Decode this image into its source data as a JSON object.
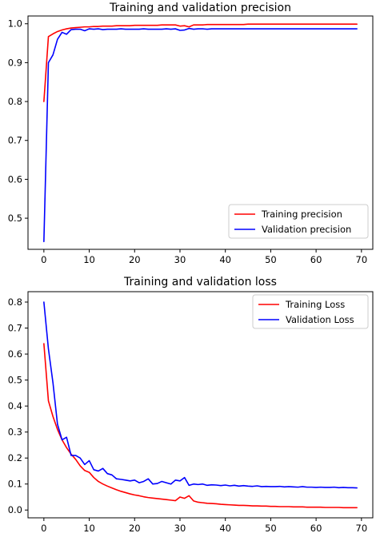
{
  "chart_data": [
    {
      "type": "line",
      "title": "Training and validation precision",
      "xlabel": "",
      "ylabel": "",
      "xlim": [
        -3.5,
        72.5
      ],
      "ylim": [
        0.42,
        1.02
      ],
      "xticks": [
        0,
        10,
        20,
        30,
        40,
        50,
        60,
        70
      ],
      "yticks": [
        0.5,
        0.6,
        0.7,
        0.8,
        0.9,
        1.0
      ],
      "xtick_labels": [
        "0",
        "10",
        "20",
        "30",
        "40",
        "50",
        "60",
        "70"
      ],
      "ytick_labels": [
        "0.5",
        "0.6",
        "0.7",
        "0.8",
        "0.9",
        "1.0"
      ],
      "grid": false,
      "legend_position": "lower-right",
      "series": [
        {
          "name": "Training precision",
          "color": "#ff0000",
          "x": [
            0,
            1,
            2,
            3,
            4,
            5,
            6,
            7,
            8,
            9,
            10,
            11,
            12,
            13,
            14,
            15,
            16,
            17,
            18,
            19,
            20,
            21,
            22,
            23,
            24,
            25,
            26,
            27,
            28,
            29,
            30,
            31,
            32,
            33,
            34,
            35,
            36,
            37,
            38,
            39,
            40,
            41,
            42,
            43,
            44,
            45,
            46,
            47,
            48,
            49,
            50,
            51,
            52,
            53,
            54,
            55,
            56,
            57,
            58,
            59,
            60,
            61,
            62,
            63,
            64,
            65,
            66,
            67,
            68,
            69
          ],
          "values": [
            0.8,
            0.967,
            0.974,
            0.98,
            0.984,
            0.987,
            0.989,
            0.99,
            0.991,
            0.992,
            0.992,
            0.993,
            0.993,
            0.994,
            0.994,
            0.994,
            0.995,
            0.995,
            0.995,
            0.995,
            0.996,
            0.996,
            0.996,
            0.996,
            0.996,
            0.996,
            0.997,
            0.997,
            0.997,
            0.997,
            0.994,
            0.995,
            0.992,
            0.997,
            0.997,
            0.997,
            0.998,
            0.998,
            0.998,
            0.998,
            0.998,
            0.998,
            0.998,
            0.998,
            0.998,
            0.999,
            0.999,
            0.999,
            0.999,
            0.999,
            0.999,
            0.999,
            0.999,
            0.999,
            0.999,
            0.999,
            0.999,
            0.999,
            0.999,
            0.999,
            0.999,
            0.999,
            0.999,
            0.999,
            0.999,
            0.999,
            0.999,
            0.999,
            0.999,
            0.999
          ]
        },
        {
          "name": "Validation precision",
          "color": "#0000ff",
          "x": [
            0,
            1,
            2,
            3,
            4,
            5,
            6,
            7,
            8,
            9,
            10,
            11,
            12,
            13,
            14,
            15,
            16,
            17,
            18,
            19,
            20,
            21,
            22,
            23,
            24,
            25,
            26,
            27,
            28,
            29,
            30,
            31,
            32,
            33,
            34,
            35,
            36,
            37,
            38,
            39,
            40,
            41,
            42,
            43,
            44,
            45,
            46,
            47,
            48,
            49,
            50,
            51,
            52,
            53,
            54,
            55,
            56,
            57,
            58,
            59,
            60,
            61,
            62,
            63,
            64,
            65,
            66,
            67,
            68,
            69
          ],
          "values": [
            0.44,
            0.9,
            0.92,
            0.96,
            0.978,
            0.973,
            0.985,
            0.986,
            0.986,
            0.982,
            0.987,
            0.986,
            0.987,
            0.985,
            0.986,
            0.986,
            0.986,
            0.987,
            0.986,
            0.986,
            0.986,
            0.986,
            0.987,
            0.986,
            0.986,
            0.986,
            0.986,
            0.987,
            0.986,
            0.987,
            0.983,
            0.984,
            0.988,
            0.986,
            0.987,
            0.987,
            0.986,
            0.987,
            0.987,
            0.987,
            0.987,
            0.987,
            0.987,
            0.987,
            0.987,
            0.987,
            0.987,
            0.987,
            0.987,
            0.987,
            0.987,
            0.987,
            0.987,
            0.987,
            0.987,
            0.987,
            0.987,
            0.987,
            0.987,
            0.987,
            0.987,
            0.987,
            0.987,
            0.987,
            0.987,
            0.987,
            0.987,
            0.987,
            0.987,
            0.987
          ]
        }
      ]
    },
    {
      "type": "line",
      "title": "Training and validation loss",
      "xlabel": "",
      "ylabel": "",
      "xlim": [
        -3.5,
        72.5
      ],
      "ylim": [
        -0.03,
        0.84
      ],
      "xticks": [
        0,
        10,
        20,
        30,
        40,
        50,
        60,
        70
      ],
      "yticks": [
        0.0,
        0.1,
        0.2,
        0.3,
        0.4,
        0.5,
        0.6,
        0.7,
        0.8
      ],
      "xtick_labels": [
        "0",
        "10",
        "20",
        "30",
        "40",
        "50",
        "60",
        "70"
      ],
      "ytick_labels": [
        "0.0",
        "0.1",
        "0.2",
        "0.3",
        "0.4",
        "0.5",
        "0.6",
        "0.7",
        "0.8"
      ],
      "grid": false,
      "legend_position": "upper-right",
      "series": [
        {
          "name": "Training Loss",
          "color": "#ff0000",
          "x": [
            0,
            1,
            2,
            3,
            4,
            5,
            6,
            7,
            8,
            9,
            10,
            11,
            12,
            13,
            14,
            15,
            16,
            17,
            18,
            19,
            20,
            21,
            22,
            23,
            24,
            25,
            26,
            27,
            28,
            29,
            30,
            31,
            32,
            33,
            34,
            35,
            36,
            37,
            38,
            39,
            40,
            41,
            42,
            43,
            44,
            45,
            46,
            47,
            48,
            49,
            50,
            51,
            52,
            53,
            54,
            55,
            56,
            57,
            58,
            59,
            60,
            61,
            62,
            63,
            64,
            65,
            66,
            67,
            68,
            69
          ],
          "values": [
            0.64,
            0.42,
            0.36,
            0.31,
            0.27,
            0.24,
            0.215,
            0.195,
            0.17,
            0.152,
            0.145,
            0.125,
            0.11,
            0.1,
            0.092,
            0.085,
            0.078,
            0.072,
            0.067,
            0.062,
            0.058,
            0.055,
            0.051,
            0.048,
            0.046,
            0.044,
            0.042,
            0.04,
            0.038,
            0.036,
            0.05,
            0.045,
            0.055,
            0.035,
            0.03,
            0.028,
            0.026,
            0.025,
            0.024,
            0.022,
            0.021,
            0.02,
            0.019,
            0.018,
            0.018,
            0.017,
            0.016,
            0.016,
            0.015,
            0.015,
            0.014,
            0.014,
            0.013,
            0.013,
            0.013,
            0.012,
            0.012,
            0.012,
            0.011,
            0.011,
            0.011,
            0.011,
            0.01,
            0.01,
            0.01,
            0.01,
            0.009,
            0.009,
            0.009,
            0.009
          ]
        },
        {
          "name": "Validation Loss",
          "color": "#0000ff",
          "x": [
            0,
            1,
            2,
            3,
            4,
            5,
            6,
            7,
            8,
            9,
            10,
            11,
            12,
            13,
            14,
            15,
            16,
            17,
            18,
            19,
            20,
            21,
            22,
            23,
            24,
            25,
            26,
            27,
            28,
            29,
            30,
            31,
            32,
            33,
            34,
            35,
            36,
            37,
            38,
            39,
            40,
            41,
            42,
            43,
            44,
            45,
            46,
            47,
            48,
            49,
            50,
            51,
            52,
            53,
            54,
            55,
            56,
            57,
            58,
            59,
            60,
            61,
            62,
            63,
            64,
            65,
            66,
            67,
            68,
            69
          ],
          "values": [
            0.8,
            0.62,
            0.49,
            0.33,
            0.27,
            0.28,
            0.21,
            0.21,
            0.2,
            0.175,
            0.19,
            0.155,
            0.15,
            0.16,
            0.14,
            0.135,
            0.12,
            0.118,
            0.115,
            0.112,
            0.115,
            0.105,
            0.11,
            0.12,
            0.1,
            0.102,
            0.11,
            0.105,
            0.1,
            0.115,
            0.112,
            0.125,
            0.095,
            0.1,
            0.098,
            0.1,
            0.095,
            0.097,
            0.096,
            0.094,
            0.096,
            0.093,
            0.095,
            0.092,
            0.094,
            0.092,
            0.091,
            0.093,
            0.09,
            0.091,
            0.09,
            0.09,
            0.091,
            0.089,
            0.09,
            0.089,
            0.088,
            0.09,
            0.088,
            0.088,
            0.087,
            0.088,
            0.087,
            0.087,
            0.088,
            0.086,
            0.087,
            0.086,
            0.086,
            0.085
          ]
        }
      ]
    }
  ]
}
